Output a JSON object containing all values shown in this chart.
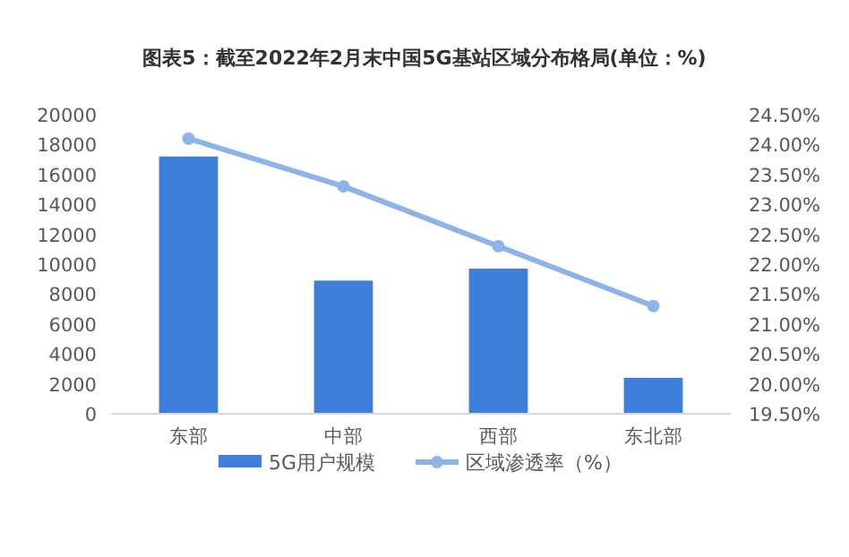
{
  "chart_data": {
    "type": "bar",
    "title": "图表5：截至2022年2月末中国5G基站区域分布格局(单位：%)",
    "categories": [
      "东部",
      "中部",
      "西部",
      "东北部"
    ],
    "series": [
      {
        "name": "5G用户规模",
        "color": "#3f7fdc",
        "values": [
          17200,
          8900,
          9700,
          2400
        ]
      },
      {
        "name": "区域渗透率（%）",
        "type": "line",
        "axis": "y2",
        "color": "#8db4e8",
        "marker": "circle",
        "values": [
          24.1,
          23.3,
          22.3,
          21.3
        ]
      }
    ],
    "ylim": [
      0,
      20000
    ],
    "yticks": [
      0,
      2000,
      4000,
      6000,
      8000,
      10000,
      12000,
      14000,
      16000,
      18000,
      20000
    ],
    "y2lim": [
      19.5,
      24.5
    ],
    "y2ticks": [
      {
        "value": 19.5,
        "label": "19.50%"
      },
      {
        "value": 20,
        "label": "20.00%"
      },
      {
        "value": 20.5,
        "label": "20.50%"
      },
      {
        "value": 21,
        "label": "21.00%"
      },
      {
        "value": 21.5,
        "label": "21.50%"
      },
      {
        "value": 22,
        "label": "22.00%"
      },
      {
        "value": 22.5,
        "label": "22.50%"
      },
      {
        "value": 23,
        "label": "23.00%"
      },
      {
        "value": 23.5,
        "label": "23.50%"
      },
      {
        "value": 24,
        "label": "24.00%"
      },
      {
        "value": 24.5,
        "label": "24.50%"
      }
    ],
    "legend": "bottom"
  }
}
